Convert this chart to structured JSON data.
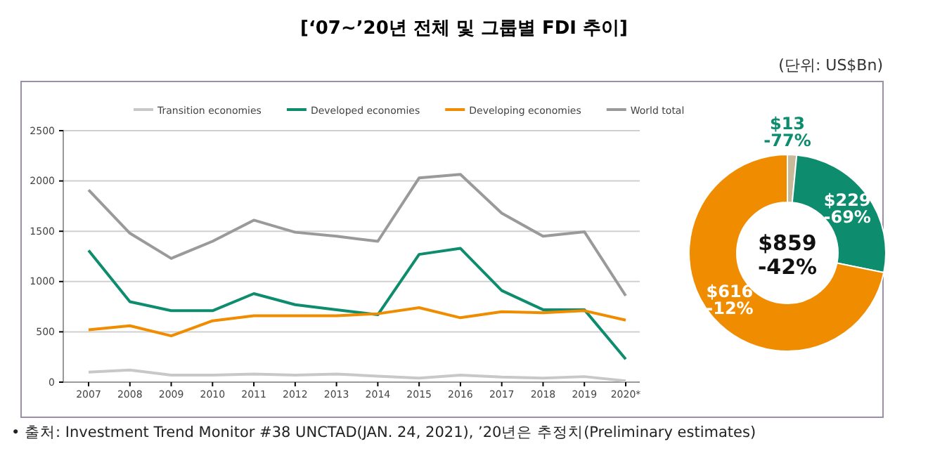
{
  "chart_data": [
    {
      "type": "line",
      "title": "[‘07~’20년 전체 및 그룹별 FDI 추이]",
      "categories": [
        "2007",
        "2008",
        "2009",
        "2010",
        "2011",
        "2012",
        "2013",
        "2014",
        "2015",
        "2016",
        "2017",
        "2018",
        "2019",
        "2020*"
      ],
      "series": [
        {
          "name": "Transition economies",
          "color": "#c8c8c8",
          "values": [
            100,
            120,
            70,
            70,
            80,
            70,
            80,
            60,
            40,
            70,
            50,
            40,
            55,
            13
          ]
        },
        {
          "name": "Developed economies",
          "color": "#0e8c6e",
          "values": [
            1310,
            800,
            710,
            710,
            880,
            770,
            720,
            670,
            1270,
            1330,
            910,
            720,
            720,
            229
          ]
        },
        {
          "name": "Developing economies",
          "color": "#f08c00",
          "values": [
            520,
            560,
            460,
            610,
            660,
            660,
            660,
            680,
            740,
            640,
            700,
            690,
            710,
            616
          ]
        },
        {
          "name": "World total",
          "color": "#9a9a9a",
          "values": [
            1910,
            1480,
            1230,
            1400,
            1610,
            1490,
            1450,
            1400,
            2030,
            2065,
            1680,
            1450,
            1495,
            859
          ]
        }
      ],
      "ylim": [
        0,
        2500
      ],
      "yticks": [
        0,
        500,
        1000,
        1500,
        2000,
        2500
      ],
      "grid": "y",
      "legend": "top",
      "marker": "none",
      "line_style": "solid",
      "annotations": [
        "(단위: US$Bn)",
        "• 출처: Investment Trend Monitor #38 UNCTAD(JAN. 24, 2021), ’20년은 추정치(Preliminary estimates)"
      ]
    },
    {
      "type": "donut",
      "categories": [
        null,
        null,
        null
      ],
      "values": [
        13,
        229,
        616
      ],
      "colors": [
        "#c9b99b",
        "#0e8c6e",
        "#f08c00"
      ],
      "value_labels": [
        "$13\n-77%",
        "$229\n-69%",
        "$616\n-12%"
      ],
      "annotations": [
        "$859\n-42%"
      ]
    }
  ]
}
